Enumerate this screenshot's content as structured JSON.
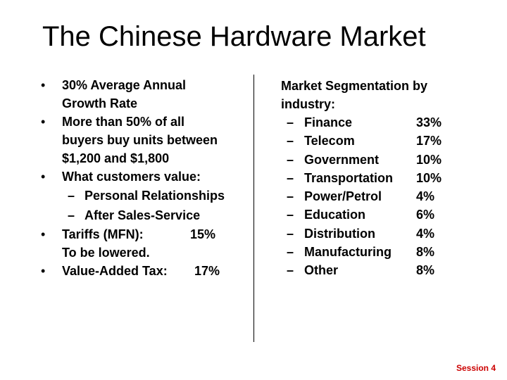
{
  "slide": {
    "title": "The Chinese Hardware Market",
    "footer": "Session 4"
  },
  "left": {
    "bullet_glyph": "•",
    "dash_glyph": "–",
    "b1": {
      "line1": "30% Average Annual",
      "line2": "Growth Rate"
    },
    "b2": {
      "line1": "More than 50% of all",
      "line2": "buyers buy units between",
      "line3": "$1,200 and $1,800"
    },
    "b3": {
      "text": "What customers value:",
      "subs": [
        "Personal Relationships",
        "After Sales-Service"
      ]
    },
    "b4": {
      "label": "Tariffs (MFN):",
      "value": "15%",
      "line2": "To be lowered."
    },
    "b5": {
      "label": "Value-Added Tax:",
      "value": "17%"
    }
  },
  "right": {
    "heading_line1": "Market Segmentation by",
    "heading_line2": "industry:",
    "segments": [
      {
        "name": "Finance",
        "pct": "33%"
      },
      {
        "name": "Telecom",
        "pct": "17%"
      },
      {
        "name": "Government",
        "pct": "10%"
      },
      {
        "name": "Transportation",
        "pct": "10%"
      },
      {
        "name": "Power/Petrol",
        "pct": "4%"
      },
      {
        "name": "Education",
        "pct": "6%"
      },
      {
        "name": "Distribution",
        "pct": "4%"
      },
      {
        "name": "Manufacturing",
        "pct": "8%"
      },
      {
        "name": "Other",
        "pct": "8%"
      }
    ]
  }
}
